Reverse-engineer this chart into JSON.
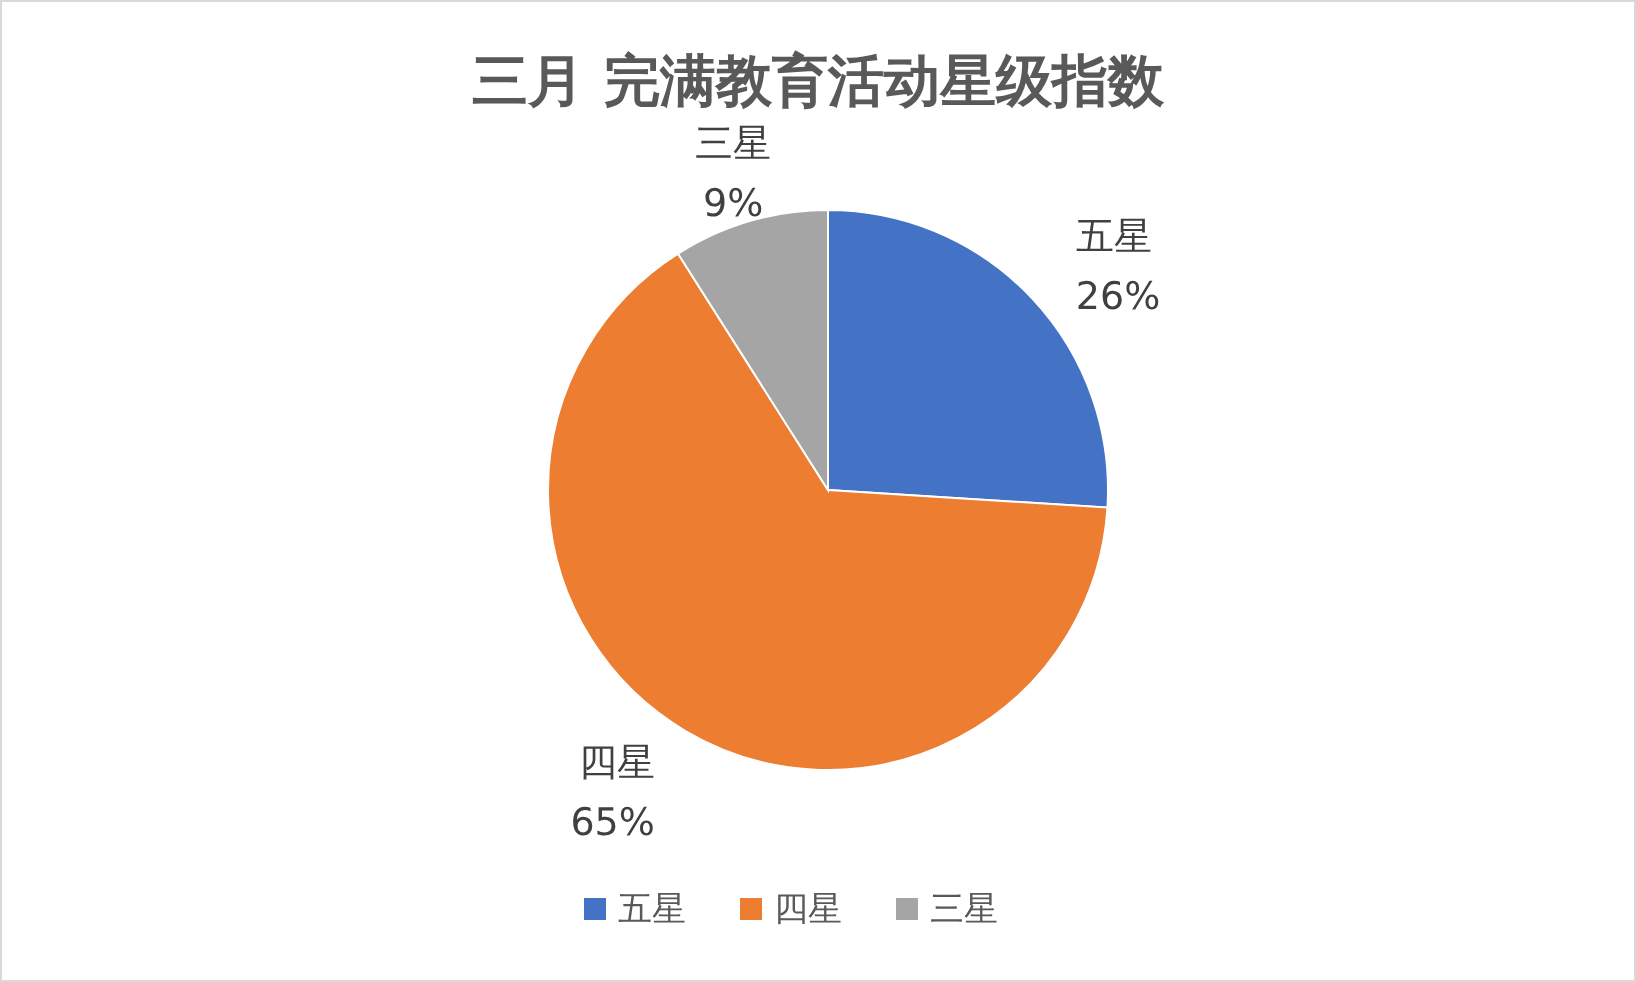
{
  "chart_data": {
    "type": "pie",
    "title": "三月 完满教育活动星级指数",
    "categories": [
      "五星",
      "四星",
      "三星"
    ],
    "values": [
      26,
      65,
      9
    ],
    "value_labels": [
      "26%",
      "65%",
      "9%"
    ],
    "colors": [
      "#4472c4",
      "#ed7d31",
      "#a5a5a5"
    ],
    "legend": "bottom"
  }
}
